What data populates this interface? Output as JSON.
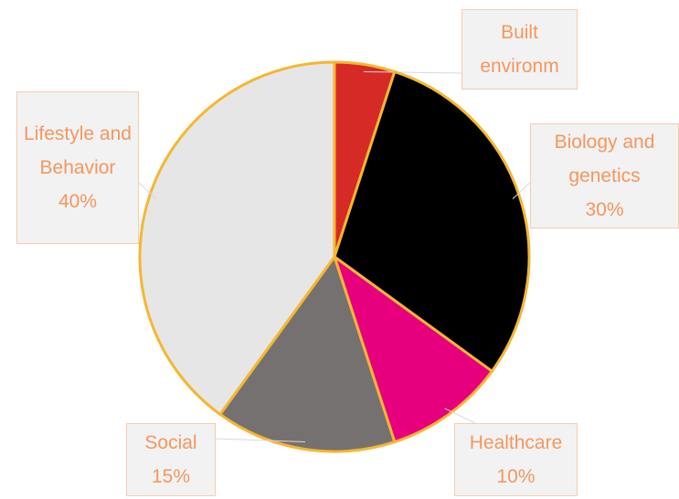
{
  "chart_data": {
    "type": "pie",
    "categories": [
      "Built environm",
      "Biology and genetics",
      "Healthcare",
      "Social",
      "Lifestyle and Behavior"
    ],
    "values": [
      5,
      30,
      10,
      15,
      40
    ],
    "value_labels": [
      null,
      "30%",
      "10%",
      "15%",
      "40%"
    ],
    "colors": [
      "#d62a27",
      "#000000",
      "#e6007e",
      "#767171",
      "#e6e6e6"
    ],
    "edge_color": "#f5b731"
  }
}
